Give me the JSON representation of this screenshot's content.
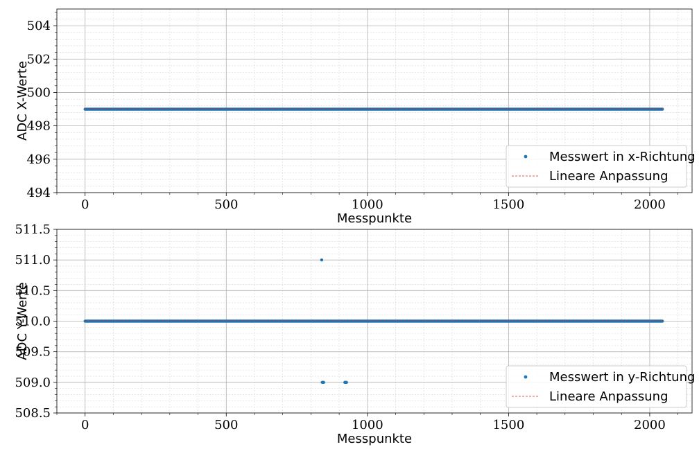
{
  "colors": {
    "measurement": "#1f77b4",
    "fit": "#d62728",
    "grid_major": "#b0b0b0",
    "grid_minor": "#dcdcdc"
  },
  "chart_data": [
    {
      "type": "scatter",
      "xlabel": "Messpunkte",
      "ylabel": "ADC X-Werte",
      "xlim": [
        -100,
        2150
      ],
      "ylim": [
        494,
        505
      ],
      "xticks": [
        0,
        500,
        1000,
        1500,
        2000
      ],
      "yticks": [
        494,
        496,
        498,
        500,
        502,
        504
      ],
      "y_decimals": 0,
      "grid": true,
      "legend_position": "bottom-right",
      "series": [
        {
          "name": "Messwert in x-Richtung",
          "kind": "points",
          "segments": [
            {
              "x_start": 0,
              "x_end": 2047,
              "y": 499
            }
          ],
          "points": []
        },
        {
          "name": "Lineare Anpassung",
          "kind": "dashed-line",
          "x": [
            0,
            2047
          ],
          "y": [
            499,
            499
          ]
        }
      ]
    },
    {
      "type": "scatter",
      "xlabel": "Messpunkte",
      "ylabel": "ADC Y-Werte",
      "xlim": [
        -100,
        2150
      ],
      "ylim": [
        508.5,
        511.5
      ],
      "xticks": [
        0,
        500,
        1000,
        1500,
        2000
      ],
      "yticks": [
        508.5,
        509.0,
        509.5,
        510.0,
        510.5,
        511.0,
        511.5
      ],
      "y_decimals": 1,
      "grid": true,
      "legend_position": "bottom-right",
      "series": [
        {
          "name": "Messwert in y-Richtung",
          "kind": "points",
          "segments": [
            {
              "x_start": 0,
              "x_end": 2047,
              "y": 510
            }
          ],
          "points": [
            {
              "x": 838,
              "y": 511
            },
            {
              "x": 840,
              "y": 509
            },
            {
              "x": 842,
              "y": 509
            },
            {
              "x": 845,
              "y": 509
            },
            {
              "x": 920,
              "y": 509
            },
            {
              "x": 923,
              "y": 509
            },
            {
              "x": 926,
              "y": 509
            }
          ]
        },
        {
          "name": "Lineare Anpassung",
          "kind": "dashed-line",
          "x": [
            0,
            2047
          ],
          "y": [
            510,
            510
          ]
        }
      ]
    }
  ]
}
